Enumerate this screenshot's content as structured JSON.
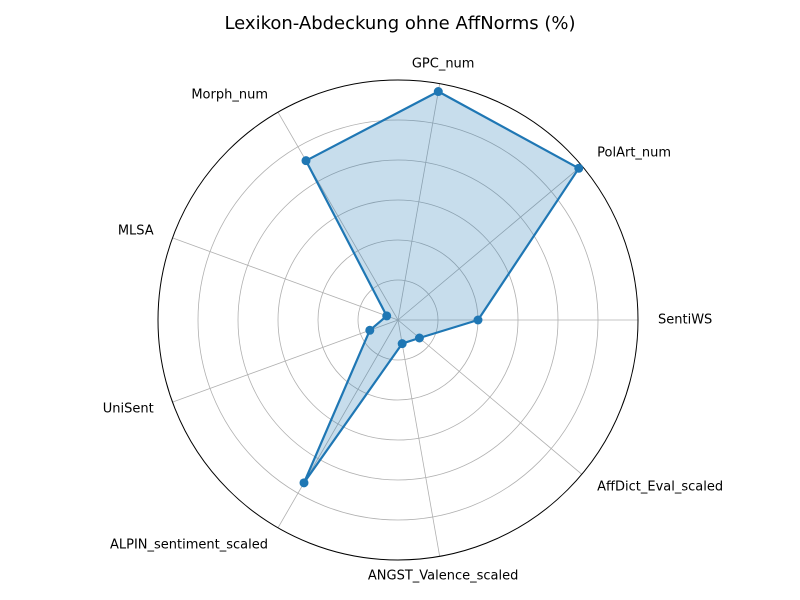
{
  "chart_data": {
    "type": "radar",
    "title": "Lexikon-Abdeckung ohne AffNorms (%)",
    "categories": [
      "SentiWS",
      "PolArt_num",
      "GPC_num",
      "Morph_num",
      "MLSA",
      "UniSent",
      "ALPIN_sentiment_scaled",
      "ANGST_Valence_scaled",
      "AffDict_Eval_scaled"
    ],
    "series": [
      {
        "values": [
          2.0,
          5.9,
          5.8,
          4.6,
          0.3,
          0.75,
          4.7,
          0.6,
          0.7
        ]
      }
    ],
    "rlim": [
      0,
      6
    ],
    "grid": true,
    "colors": {
      "line": "#1f77b4",
      "fill": "#1f77b4"
    }
  }
}
